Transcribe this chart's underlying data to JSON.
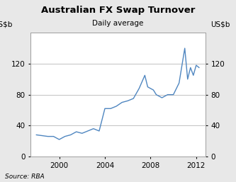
{
  "title": "Australian FX Swap Turnover",
  "subtitle": "Daily average",
  "ylabel_left": "US$b",
  "ylabel_right": "US$b",
  "source": "Source: RBA",
  "line_color": "#4f86c0",
  "background_color": "#e8e8e8",
  "plot_background": "#ffffff",
  "ylim": [
    0,
    160
  ],
  "yticks": [
    0,
    40,
    80,
    120
  ],
  "xlim": [
    1997.5,
    2012.8
  ],
  "xticks": [
    2000,
    2004,
    2008,
    2012
  ],
  "x": [
    1998.0,
    1998.5,
    1999.0,
    1999.5,
    2000.0,
    2000.5,
    2001.0,
    2001.5,
    2002.0,
    2002.5,
    2003.0,
    2003.5,
    2004.0,
    2004.5,
    2005.0,
    2005.5,
    2006.0,
    2006.5,
    2007.0,
    2007.5,
    2007.75,
    2008.0,
    2008.25,
    2008.5,
    2009.0,
    2009.5,
    2010.0,
    2010.5,
    2011.0,
    2011.25,
    2011.5,
    2011.75,
    2012.0,
    2012.25
  ],
  "y": [
    28,
    27,
    26,
    26,
    22,
    26,
    28,
    32,
    30,
    33,
    36,
    33,
    62,
    62,
    65,
    70,
    72,
    75,
    88,
    105,
    90,
    88,
    86,
    80,
    76,
    80,
    80,
    95,
    140,
    100,
    115,
    105,
    118,
    115
  ]
}
